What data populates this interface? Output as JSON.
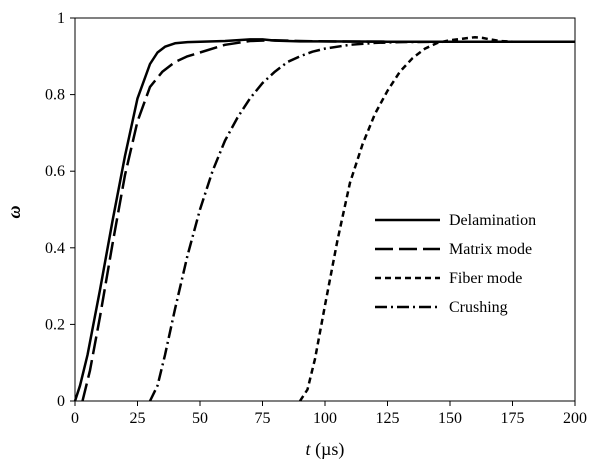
{
  "chart_data": {
    "type": "line",
    "title": "",
    "xlabel_italic": "t",
    "xlabel_unit": " (µs)",
    "ylabel": "ω",
    "xlim": [
      0,
      200
    ],
    "ylim": [
      0,
      1
    ],
    "xticks": [
      0,
      25,
      50,
      75,
      100,
      125,
      150,
      175,
      200
    ],
    "yticks": [
      0,
      0.2,
      0.4,
      0.6,
      0.8,
      1
    ],
    "xtick_labels": [
      "0",
      "25",
      "50",
      "75",
      "100",
      "125",
      "150",
      "175",
      "200"
    ],
    "ytick_labels": [
      "0",
      "0.2",
      "0.4",
      "0.6",
      "0.8",
      "1"
    ],
    "grid": false,
    "legend_position": "right",
    "series": [
      {
        "name": "Delamination",
        "dash": "solid",
        "x": [
          0,
          2,
          5,
          10,
          15,
          20,
          25,
          30,
          33,
          36,
          40,
          45,
          50,
          60,
          70,
          75,
          80,
          90,
          100,
          125,
          150,
          175,
          200
        ],
        "y": [
          0,
          0.04,
          0.12,
          0.29,
          0.47,
          0.64,
          0.79,
          0.88,
          0.91,
          0.925,
          0.934,
          0.937,
          0.938,
          0.94,
          0.944,
          0.944,
          0.941,
          0.939,
          0.939,
          0.938,
          0.938,
          0.938,
          0.938
        ]
      },
      {
        "name": "Matrix mode",
        "dash": "long-dash",
        "x": [
          3,
          6,
          10,
          15,
          20,
          25,
          30,
          35,
          40,
          45,
          50,
          60,
          70,
          80,
          90,
          100,
          125,
          150,
          175,
          200
        ],
        "y": [
          0,
          0.08,
          0.22,
          0.41,
          0.59,
          0.73,
          0.82,
          0.86,
          0.885,
          0.9,
          0.91,
          0.93,
          0.94,
          0.942,
          0.94,
          0.939,
          0.938,
          0.938,
          0.938,
          0.938
        ]
      },
      {
        "name": "Fiber mode",
        "dash": "short-dash",
        "x": [
          90,
          93,
          96,
          100,
          105,
          110,
          115,
          120,
          125,
          130,
          135,
          140,
          145,
          150,
          155,
          160,
          163,
          166,
          170,
          175,
          200
        ],
        "y": [
          0,
          0.03,
          0.11,
          0.25,
          0.42,
          0.57,
          0.67,
          0.75,
          0.81,
          0.86,
          0.895,
          0.92,
          0.935,
          0.942,
          0.946,
          0.95,
          0.948,
          0.944,
          0.94,
          0.938,
          0.938
        ]
      },
      {
        "name": "Crushing",
        "dash": "dash-dot",
        "x": [
          30,
          33,
          36,
          40,
          45,
          50,
          55,
          60,
          65,
          70,
          75,
          80,
          85,
          90,
          95,
          100,
          110,
          120,
          130,
          150,
          175,
          200
        ],
        "y": [
          0,
          0.04,
          0.12,
          0.24,
          0.38,
          0.5,
          0.6,
          0.68,
          0.74,
          0.79,
          0.83,
          0.86,
          0.885,
          0.9,
          0.912,
          0.92,
          0.93,
          0.935,
          0.937,
          0.938,
          0.938,
          0.938
        ]
      }
    ]
  }
}
